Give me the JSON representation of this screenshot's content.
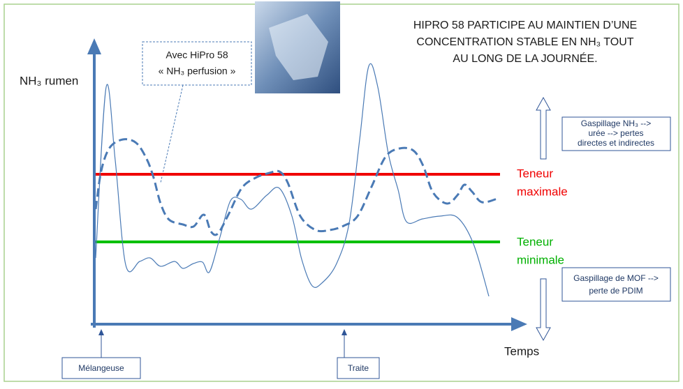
{
  "title": {
    "lines": [
      "HIPRO 58 PARTICIPE AU MAINTIEN D’UNE",
      "CONCENTRATION STABLE EN NH₃ TOUT",
      "AU LONG DE LA JOURNÉE."
    ]
  },
  "callout": {
    "lines": [
      "Avec HiPro 58",
      "« NH₃ perfusion »"
    ]
  },
  "y_axis_label": "NH₃ rumen",
  "x_axis_label": "Temps",
  "max_level": {
    "lines": [
      "Teneur",
      "maximale"
    ]
  },
  "min_level": {
    "lines": [
      "Teneur",
      "minimale"
    ]
  },
  "upper_box": {
    "lines": [
      "Gaspillage NH₃ -->",
      "urée --> pertes",
      "directes et indirectes"
    ]
  },
  "lower_box": {
    "lines": [
      "Gaspillage de MOF -->",
      "perte de PDIM"
    ]
  },
  "markers": [
    "Mélangeuse",
    "Traite"
  ]
}
